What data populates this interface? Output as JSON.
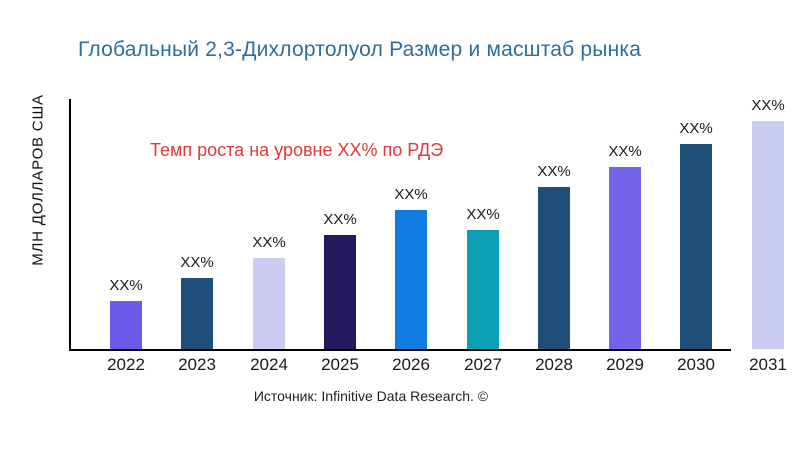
{
  "header": {
    "title": "Глобальный 2,3-Дихлортолуол Размер и масштаб рынка"
  },
  "y_axis": {
    "label": "МЛН ДОЛЛАРОВ США"
  },
  "annotation": {
    "text": "Темп роста на уровне XX% по РДЭ"
  },
  "footer": {
    "source": "Источник: Infinitive Data Research. ©"
  },
  "colors": {
    "title": "#2E6E9E",
    "annotation": "#E03A3A",
    "axis": "#000000",
    "value_label": "#1A1A1A"
  },
  "chart_data": {
    "type": "bar",
    "title": "Глобальный 2,3-Дихлортолуол Размер и масштаб рынка",
    "xlabel": "",
    "ylabel": "МЛН ДОЛЛАРОВ США",
    "categories": [
      "2022",
      "2023",
      "2024",
      "2025",
      "2026",
      "2027",
      "2028",
      "2029",
      "2030",
      "2031"
    ],
    "values_relative_pct_of_max": [
      21,
      31,
      40,
      50,
      61,
      52,
      71,
      80,
      90,
      100
    ],
    "bar_value_labels": [
      "XX%",
      "XX%",
      "XX%",
      "XX%",
      "XX%",
      "XX%",
      "XX%",
      "XX%",
      "XX%",
      "XX%"
    ],
    "bar_colors": [
      "#6A5CE8",
      "#1F4E79",
      "#C9CCEE",
      "#231A5E",
      "#117CDF",
      "#0AA0B5",
      "#1F4E79",
      "#7463EB",
      "#1F4E79",
      "#C9CCEE"
    ],
    "numeric_ticks_visible": false,
    "grid": false,
    "legend": false
  }
}
